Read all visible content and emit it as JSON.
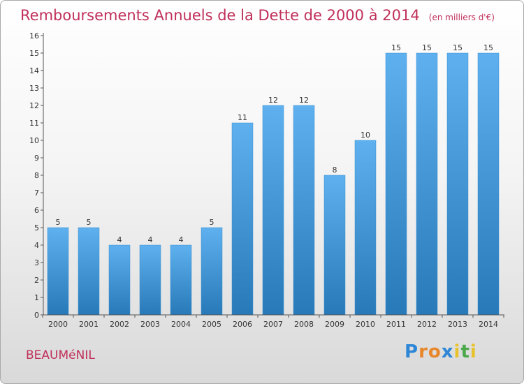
{
  "chart_data": {
    "type": "bar",
    "title": "Remboursements Annuels de la Dette de 2000 à 2014",
    "unit_note": "(en milliers d'€)",
    "xlabel": "",
    "ylabel": "",
    "ylim": [
      0,
      16
    ],
    "yticks": [
      0,
      1,
      2,
      3,
      4,
      5,
      6,
      7,
      8,
      9,
      10,
      11,
      12,
      13,
      14,
      15,
      16
    ],
    "grid": false,
    "categories": [
      "2000",
      "2001",
      "2002",
      "2003",
      "2004",
      "2005",
      "2006",
      "2007",
      "2008",
      "2009",
      "2010",
      "2011",
      "2012",
      "2013",
      "2014"
    ],
    "values": [
      5,
      5,
      4,
      4,
      4,
      5,
      11,
      12,
      12,
      8,
      10,
      15,
      15,
      15,
      15
    ],
    "colors": {
      "bar_light": "#5eb0ee",
      "bar_dark": "#2779b8",
      "title": "#c0305a",
      "axis": "#555555"
    }
  },
  "footer": {
    "commune": "BEAUMéNIL",
    "brand_letters": [
      {
        "ch": "P",
        "color": "#2d86d6"
      },
      {
        "ch": "r",
        "color": "#e8862a"
      },
      {
        "ch": "o",
        "color": "#e8862a"
      },
      {
        "ch": "x",
        "color": "#2d86d6"
      },
      {
        "ch": "i",
        "color": "#e8c22a"
      },
      {
        "ch": "t",
        "color": "#4aa84a"
      },
      {
        "ch": "i",
        "color": "#e8c22a"
      }
    ]
  }
}
